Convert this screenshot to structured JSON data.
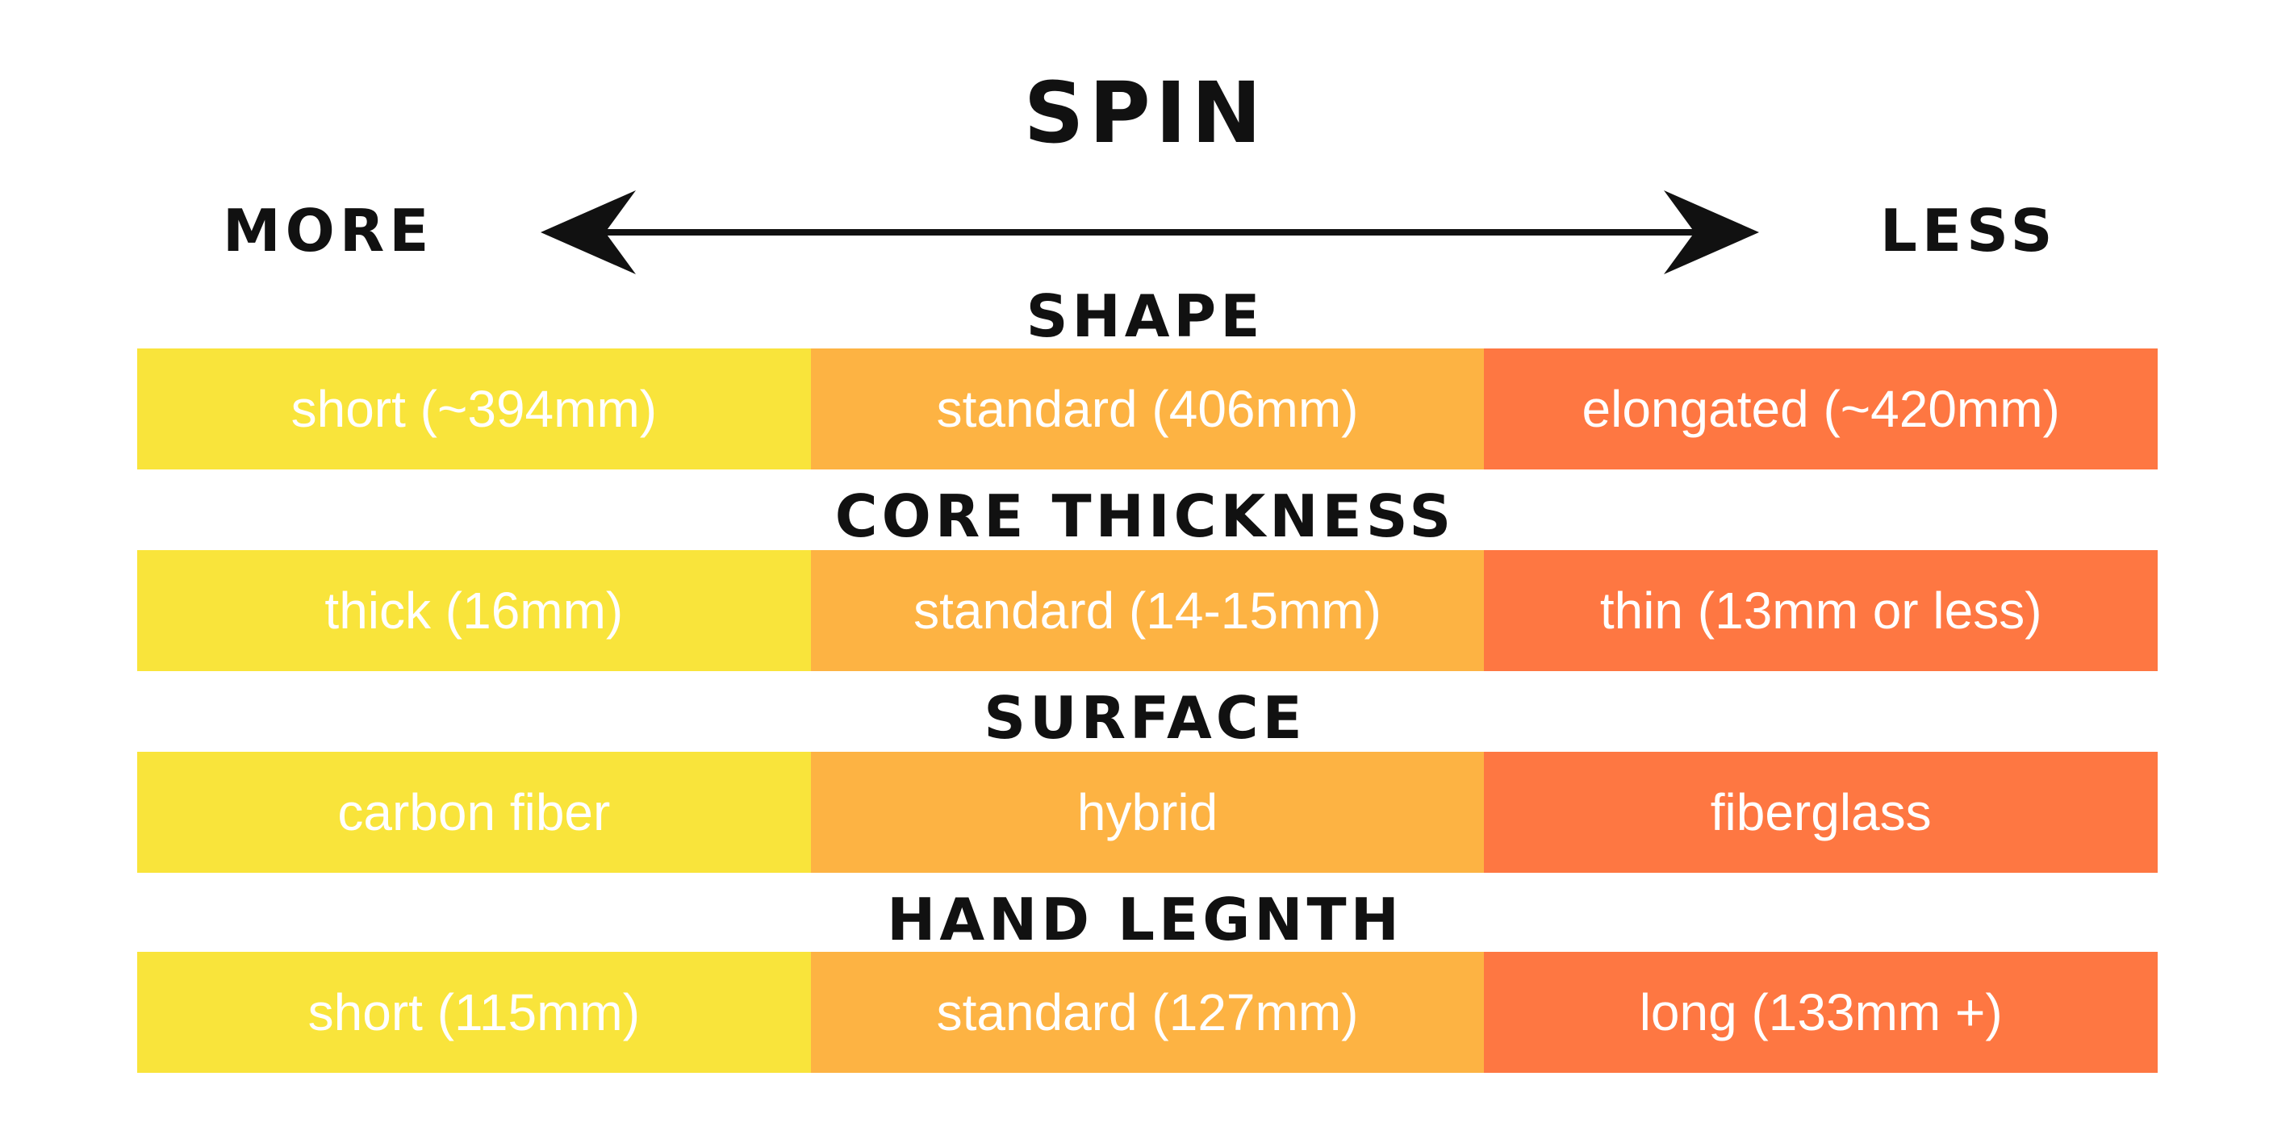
{
  "title": "SPIN",
  "axis": {
    "left_label": "MORE",
    "right_label": "LESS"
  },
  "colors": {
    "more": "#F9E43B",
    "standard": "#FDB343",
    "less": "#FE7742",
    "text_dark": "#111111",
    "text_light": "#FFFFFF"
  },
  "sections": [
    {
      "heading": "SHAPE",
      "cells": [
        "short (~394mm)",
        "standard (406mm)",
        "elongated (~420mm)"
      ]
    },
    {
      "heading": "CORE THICKNESS",
      "cells": [
        "thick (16mm)",
        "standard (14-15mm)",
        "thin (13mm or less)"
      ]
    },
    {
      "heading": "SURFACE",
      "cells": [
        "carbon fiber",
        "hybrid",
        "fiberglass"
      ]
    },
    {
      "heading": "HAND LEGNTH",
      "cells": [
        "short (115mm)",
        "standard (127mm)",
        "long (133mm +)"
      ]
    }
  ]
}
